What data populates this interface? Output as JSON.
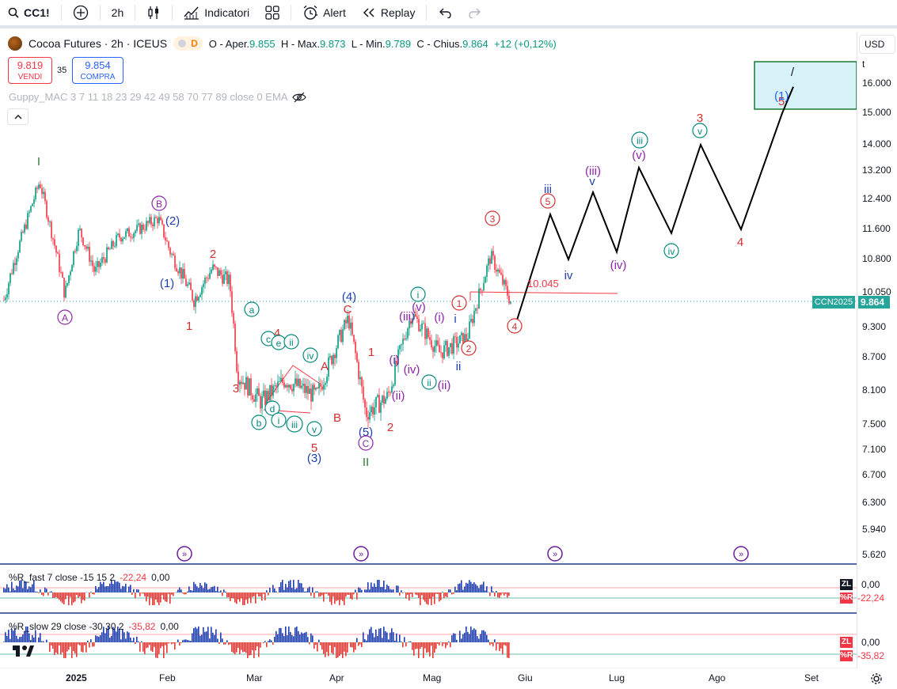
{
  "toolbar": {
    "symbol": "CC1!",
    "interval": "2h",
    "indicators_label": "Indicatori",
    "alert_label": "Alert",
    "replay_label": "Replay"
  },
  "legend": {
    "title": "Cocoa Futures · 2h · ICEUS",
    "delayed_badge": "D",
    "open_label": "O - Aper.",
    "open": "9.855",
    "high_label": "H - Max.",
    "high": "9.873",
    "low_label": "L - Min.",
    "low": "9.789",
    "close_label": "C - Chius.",
    "close": "9.864",
    "change": "+12 (+0,12%)"
  },
  "trade": {
    "sell_price": "9.819",
    "sell_label": "VENDI",
    "spread": "35",
    "buy_price": "9.854",
    "buy_label": "COMPRA"
  },
  "indicator": {
    "label": "Guppy_MAC 3 7 11 18 23 29 42 49 58 70 77 89 close 0 EMA"
  },
  "price_scale": {
    "currency": "USD",
    "unit": "t",
    "ticks": [
      "16.000",
      "15.000",
      "14.000",
      "13.200",
      "12.400",
      "11.600",
      "10.800",
      "10.050",
      "9.300",
      "8.700",
      "8.100",
      "7.500",
      "7.100",
      "6.700",
      "6.300",
      "5.940",
      "5.620"
    ],
    "current_symbol": "CCN2025",
    "current_price": "9.864"
  },
  "annotations": {
    "level_label": "10.045",
    "box_label": "(1)"
  },
  "panes": {
    "fast": {
      "label": "%R_fast 7 close -15 15 2",
      "value1": "-22,24",
      "value2": "0,00",
      "zl_label": "ZL",
      "zl_value": "0,00",
      "r_label": "%R",
      "r_value": "-22,24"
    },
    "slow": {
      "label": "%R_slow 29 close -30 30 2",
      "value1": "-35,82",
      "value2": "0,00",
      "zl_label": "ZL",
      "zl_value": "0,00",
      "r_label": "%R",
      "r_value": "-35,82"
    }
  },
  "time_axis": [
    "2025",
    "Feb",
    "Mar",
    "Apr",
    "Mag",
    "Giu",
    "Lug",
    "Ago",
    "Set"
  ],
  "chart_data": {
    "type": "line",
    "title": "Cocoa Futures · 2h · ICEUS",
    "price_path": [
      {
        "x": "Dic",
        "y": 9.9
      },
      {
        "x": "Gen-mid",
        "y": 12.9
      },
      {
        "x": "Gen-end",
        "y": 10.0
      },
      {
        "x": "Feb",
        "y": 11.9
      },
      {
        "x": "Feb-mid",
        "y": 9.9
      },
      {
        "x": "Feb-end",
        "y": 10.6
      },
      {
        "x": "Mar-start",
        "y": 8.4
      },
      {
        "x": "Mar-mid",
        "y": 7.9
      },
      {
        "x": "Apr",
        "y": 9.5
      },
      {
        "x": "Apr-mid",
        "y": 7.7
      },
      {
        "x": "Apr-end",
        "y": 8.6
      },
      {
        "x": "Mag",
        "y": 10.9
      },
      {
        "x": "Mag-end",
        "y": 9.864
      }
    ],
    "projection": [
      {
        "x": "Giu-start",
        "y": 9.3
      },
      {
        "x": "Giu",
        "y": 12.0
      },
      {
        "x": "Giu-end",
        "y": 10.8
      },
      {
        "x": "Lug-start",
        "y": 12.6
      },
      {
        "x": "Lug",
        "y": 11.0
      },
      {
        "x": "Lug-mid",
        "y": 13.3
      },
      {
        "x": "Lug-end",
        "y": 11.5
      },
      {
        "x": "Ago-start",
        "y": 14.0
      },
      {
        "x": "Ago",
        "y": 11.6
      },
      {
        "x": "Set",
        "y": 15.0
      }
    ],
    "wave_labels": [
      "I",
      "A",
      "B",
      "(2)",
      "(1)",
      "1",
      "2",
      "3",
      "4",
      "5",
      "(3)",
      "(4)",
      "C",
      "(5)",
      "II",
      "iii",
      "iv",
      "(iii)",
      "(iv)",
      "(v)",
      "v"
    ]
  }
}
